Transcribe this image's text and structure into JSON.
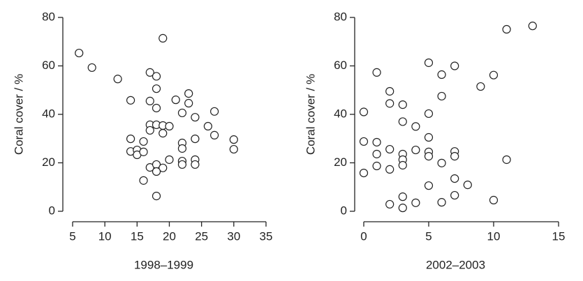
{
  "chart_data": [
    {
      "type": "scatter",
      "x_label": "1998–1999",
      "y_label": "Coral cover / %",
      "x": [
        6,
        8,
        19,
        12,
        17,
        18,
        14,
        17,
        18,
        18,
        21,
        23,
        23,
        22,
        24,
        27,
        17,
        17,
        18,
        19,
        20,
        19,
        26,
        27,
        14,
        14,
        15,
        15,
        16,
        16,
        22,
        22,
        24,
        30,
        30,
        20,
        22,
        22,
        24,
        24,
        17,
        18,
        19,
        18,
        16,
        18
      ],
      "values": [
        65.3,
        59.3,
        71.4,
        54.6,
        57.3,
        55.7,
        45.8,
        45.5,
        50.6,
        42.6,
        46,
        48.6,
        44.6,
        40.6,
        38.8,
        41.2,
        35.7,
        33.4,
        35.7,
        35.4,
        35.1,
        32.2,
        35.1,
        31.4,
        29.9,
        24.7,
        25.3,
        23.3,
        28.8,
        24.5,
        28.2,
        25.9,
        29.9,
        29.6,
        25.6,
        21.3,
        20.7,
        19.3,
        21.3,
        19.3,
        18.1,
        19.3,
        17.9,
        16.4,
        12.7,
        6.3
      ],
      "xlim": [
        5,
        35
      ],
      "xticks": [
        5,
        10,
        15,
        20,
        25,
        30,
        35
      ],
      "ylim": [
        0,
        80
      ],
      "yticks": [
        0,
        20,
        40,
        60,
        80
      ]
    },
    {
      "type": "scatter",
      "x_label": "2002–2003",
      "y_label": "Coral cover / %",
      "x": [
        13,
        11,
        1,
        2,
        5,
        6,
        7,
        9,
        10,
        6,
        2,
        3,
        5,
        0,
        3,
        4,
        5,
        0,
        1,
        2,
        4,
        3,
        5,
        5,
        7,
        7,
        1,
        3,
        6,
        1,
        3,
        2,
        0,
        11,
        7,
        8,
        5,
        7,
        3,
        6,
        4,
        2,
        10,
        3
      ],
      "values": [
        76.5,
        75.1,
        57.3,
        49.5,
        61.3,
        56.4,
        60,
        51.5,
        56.2,
        47.5,
        44.5,
        44,
        40.3,
        41,
        37,
        35,
        30.5,
        28.8,
        28.5,
        25.6,
        25.3,
        23.6,
        24.5,
        22.7,
        24.7,
        22.7,
        23.6,
        21.3,
        19.9,
        18.7,
        19,
        17.3,
        15.8,
        21.3,
        13.5,
        10.9,
        10.6,
        6.6,
        6,
        3.7,
        3.5,
        2.9,
        4.6,
        1.4
      ],
      "xlim": [
        0,
        15
      ],
      "xticks": [
        0,
        5,
        10,
        15
      ],
      "ylim": [
        0,
        80
      ],
      "yticks": [
        0,
        20,
        40,
        60,
        80
      ]
    }
  ]
}
